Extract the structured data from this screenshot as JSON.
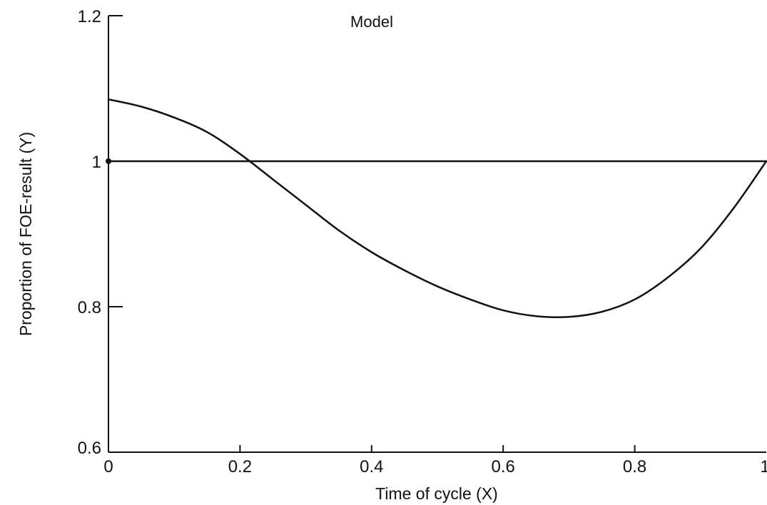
{
  "chart_data": {
    "type": "line",
    "title": "Model",
    "xlabel": "Time of cycle (X)",
    "ylabel": "Proportion of FOE-result (Y)",
    "xlim": [
      0,
      1
    ],
    "ylim": [
      0.6,
      1.2
    ],
    "x_ticks": [
      {
        "value": 0,
        "label": "0"
      },
      {
        "value": 0.2,
        "label": "0.2"
      },
      {
        "value": 0.4,
        "label": "0.4"
      },
      {
        "value": 0.6,
        "label": "0.6"
      },
      {
        "value": 0.8,
        "label": "0.8"
      },
      {
        "value": 1,
        "label": "1"
      }
    ],
    "y_ticks": [
      {
        "value": 0.6,
        "label": "0.6"
      },
      {
        "value": 0.8,
        "label": "0.8"
      },
      {
        "value": 1,
        "label": "1"
      },
      {
        "value": 1.2,
        "label": "1.2"
      }
    ],
    "grid": false,
    "series": [
      {
        "x": [
          0,
          1
        ],
        "y": [
          1.0,
          1.0
        ],
        "marker_at_start": true,
        "color": "#111111"
      },
      {
        "x": [
          0,
          0.05,
          0.1,
          0.15,
          0.2,
          0.25,
          0.3,
          0.35,
          0.4,
          0.45,
          0.5,
          0.55,
          0.6,
          0.65,
          0.7,
          0.75,
          0.8,
          0.85,
          0.9,
          0.95,
          1
        ],
        "y": [
          1.085,
          1.075,
          1.06,
          1.04,
          1.01,
          0.975,
          0.94,
          0.905,
          0.875,
          0.85,
          0.828,
          0.81,
          0.795,
          0.787,
          0.786,
          0.793,
          0.81,
          0.84,
          0.88,
          0.935,
          1.0
        ],
        "color": "#111111"
      }
    ]
  }
}
